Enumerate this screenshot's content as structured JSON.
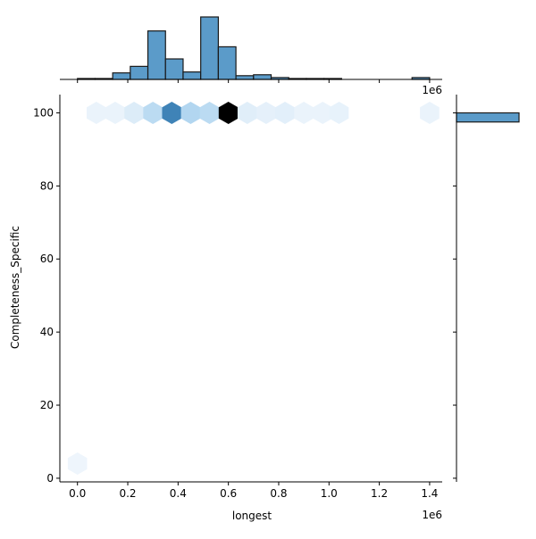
{
  "chart_data": {
    "type": "hexbin",
    "xlabel": "longest",
    "ylabel": "Completeness_Specific",
    "x_offset_label": "1e6",
    "top_x_offset_label": "1e6",
    "xlim": [
      -70000,
      1450000
    ],
    "ylim": [
      -1,
      105
    ],
    "x_ticks": [
      0,
      200000,
      400000,
      600000,
      800000,
      1000000,
      1200000,
      1400000
    ],
    "x_tick_labels": [
      "0.0",
      "0.2",
      "0.4",
      "0.6",
      "0.8",
      "1.0",
      "1.2",
      "1.4"
    ],
    "y_ticks": [
      0,
      20,
      40,
      60,
      80,
      100
    ],
    "y_tick_labels": [
      "0",
      "20",
      "40",
      "60",
      "80",
      "100"
    ],
    "hexbins": [
      {
        "x": 0,
        "y": 4,
        "count": 1
      },
      {
        "x": 75000,
        "y": 100,
        "count": 2
      },
      {
        "x": 150000,
        "y": 100,
        "count": 2
      },
      {
        "x": 225000,
        "y": 100,
        "count": 8
      },
      {
        "x": 300000,
        "y": 100,
        "count": 28
      },
      {
        "x": 375000,
        "y": 100,
        "count": 90
      },
      {
        "x": 450000,
        "y": 100,
        "count": 35
      },
      {
        "x": 525000,
        "y": 100,
        "count": 28
      },
      {
        "x": 600000,
        "y": 100,
        "count": 125
      },
      {
        "x": 675000,
        "y": 100,
        "count": 6
      },
      {
        "x": 750000,
        "y": 100,
        "count": 4
      },
      {
        "x": 825000,
        "y": 100,
        "count": 5
      },
      {
        "x": 900000,
        "y": 100,
        "count": 2
      },
      {
        "x": 975000,
        "y": 100,
        "count": 2
      },
      {
        "x": 1040000,
        "y": 100,
        "count": 3
      },
      {
        "x": 1400000,
        "y": 100,
        "count": 2
      }
    ],
    "marginal_x_histogram": {
      "bin_edges": [
        0,
        70000,
        140000,
        210000,
        280000,
        350000,
        420000,
        490000,
        560000,
        630000,
        700000,
        770000,
        840000,
        910000,
        980000,
        1050000,
        1120000,
        1190000,
        1260000,
        1330000,
        1400000
      ],
      "counts": [
        1,
        1,
        7,
        14,
        52,
        22,
        8,
        67,
        35,
        4,
        5,
        2,
        1,
        1,
        1,
        0,
        0,
        0,
        0,
        2
      ]
    },
    "marginal_y_histogram": {
      "bins": [
        {
          "y0": 97.5,
          "y1": 100,
          "count": 120
        }
      ]
    },
    "colors": {
      "bar_fill": "#5b9bc9",
      "bar_edge": "#1a1a1a",
      "hex_light": "#f3f8fd",
      "hex_mid": "#9ccaeb",
      "hex_dark": "#1764a0",
      "hex_max": "#000000"
    }
  }
}
